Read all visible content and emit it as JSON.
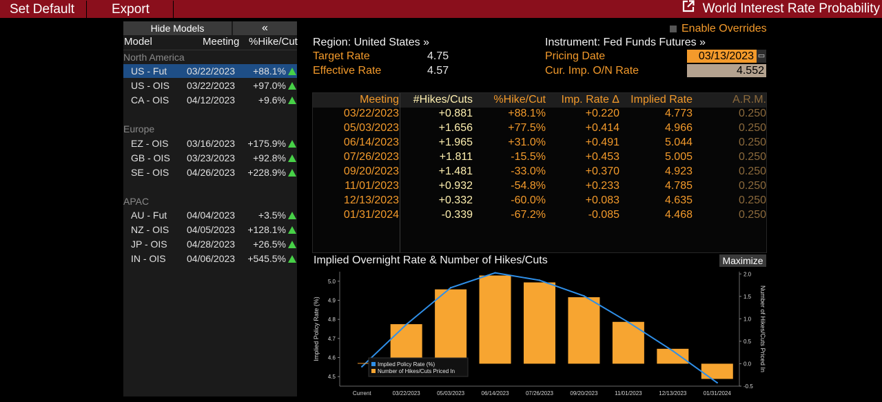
{
  "topbar": {
    "set_default": "Set Default",
    "export": "Export",
    "title": "World Interest Rate Probability"
  },
  "left_panel": {
    "hide_models": "Hide Models",
    "collapse_glyph": "«",
    "columns": {
      "model": "Model",
      "meeting": "Meeting",
      "pct": "%Hike/Cut"
    },
    "groups": [
      {
        "name": "North America",
        "rows": [
          {
            "model": "US - Fut",
            "meeting": "03/22/2023",
            "pct": "+88.1%"
          },
          {
            "model": "US - OIS",
            "meeting": "03/22/2023",
            "pct": "+97.0%"
          },
          {
            "model": "CA - OIS",
            "meeting": "04/12/2023",
            "pct": "+9.6%"
          }
        ]
      },
      {
        "name": "Europe",
        "rows": [
          {
            "model": "EZ - OIS",
            "meeting": "03/16/2023",
            "pct": "+175.9%"
          },
          {
            "model": "GB - OIS",
            "meeting": "03/23/2023",
            "pct": "+92.8%"
          },
          {
            "model": "SE - OIS",
            "meeting": "04/26/2023",
            "pct": "+228.9%"
          }
        ]
      },
      {
        "name": "APAC",
        "rows": [
          {
            "model": "AU - Fut",
            "meeting": "04/04/2023",
            "pct": "+3.5%"
          },
          {
            "model": "NZ - OIS",
            "meeting": "04/05/2023",
            "pct": "+128.1%"
          },
          {
            "model": "JP - OIS",
            "meeting": "04/28/2023",
            "pct": "+26.5%"
          },
          {
            "model": "IN - OIS",
            "meeting": "04/06/2023",
            "pct": "+545.5%"
          }
        ]
      }
    ]
  },
  "info": {
    "region_label": "Region: United States »",
    "target_rate_label": "Target Rate",
    "target_rate_value": "4.75",
    "effective_rate_label": "Effective Rate",
    "effective_rate_value": "4.57",
    "enable_overrides": "Enable Overrides",
    "instrument_label": "Instrument: Fed Funds Futures »",
    "pricing_date_label": "Pricing Date",
    "pricing_date_value": "03/13/2023",
    "cur_imp_label": "Cur. Imp. O/N Rate",
    "cur_imp_value": "4.552"
  },
  "table": {
    "headers": [
      "Meeting",
      "#Hikes/Cuts",
      "%Hike/Cut",
      "Imp. Rate Δ",
      "Implied Rate",
      "A.R.M."
    ],
    "rows": [
      [
        "03/22/2023",
        "+0.881",
        "+88.1%",
        "+0.220",
        "4.773",
        "0.250"
      ],
      [
        "05/03/2023",
        "+1.656",
        "+77.5%",
        "+0.414",
        "4.966",
        "0.250"
      ],
      [
        "06/14/2023",
        "+1.965",
        "+31.0%",
        "+0.491",
        "5.044",
        "0.250"
      ],
      [
        "07/26/2023",
        "+1.811",
        "-15.5%",
        "+0.453",
        "5.005",
        "0.250"
      ],
      [
        "09/20/2023",
        "+1.481",
        "-33.0%",
        "+0.370",
        "4.923",
        "0.250"
      ],
      [
        "11/01/2023",
        "+0.932",
        "-54.8%",
        "+0.233",
        "4.785",
        "0.250"
      ],
      [
        "12/13/2023",
        "+0.332",
        "-60.0%",
        "+0.083",
        "4.635",
        "0.250"
      ],
      [
        "01/31/2024",
        "-0.339",
        "-67.2%",
        "-0.085",
        "4.468",
        "0.250"
      ]
    ]
  },
  "chart": {
    "title": "Implied Overnight Rate & Number of Hikes/Cuts",
    "maximize": "Maximize"
  },
  "chart_data": {
    "type": "bar",
    "categories": [
      "Current",
      "03/22/2023",
      "05/03/2023",
      "06/14/2023",
      "07/26/2023",
      "09/20/2023",
      "11/01/2023",
      "12/13/2023",
      "01/31/2024"
    ],
    "series": [
      {
        "name": "Implied Policy Rate (%)",
        "type": "line",
        "axis": "left",
        "color": "#2f8fe8",
        "values": [
          4.552,
          4.773,
          4.966,
          5.044,
          5.005,
          4.923,
          4.785,
          4.635,
          4.468
        ]
      },
      {
        "name": "Number of Hikes/Cuts Priced In",
        "type": "bar",
        "axis": "right",
        "color": "#f7a531",
        "values": [
          null,
          0.881,
          1.656,
          1.965,
          1.811,
          1.481,
          0.932,
          0.332,
          -0.339
        ]
      }
    ],
    "ylabel": "Implied Policy Rate (%)",
    "y2label": "Number of Hikes/Cuts Priced In",
    "ylim": [
      4.45,
      5.05
    ],
    "y2lim": [
      -0.5,
      2.05
    ],
    "yticks": [
      "5.0",
      "4.9",
      "4.8",
      "4.7",
      "4.6",
      "4.5"
    ],
    "y2ticks": [
      "2.0",
      "1.5",
      "1.0",
      "0.5",
      "0.0",
      "-0.5"
    ]
  }
}
